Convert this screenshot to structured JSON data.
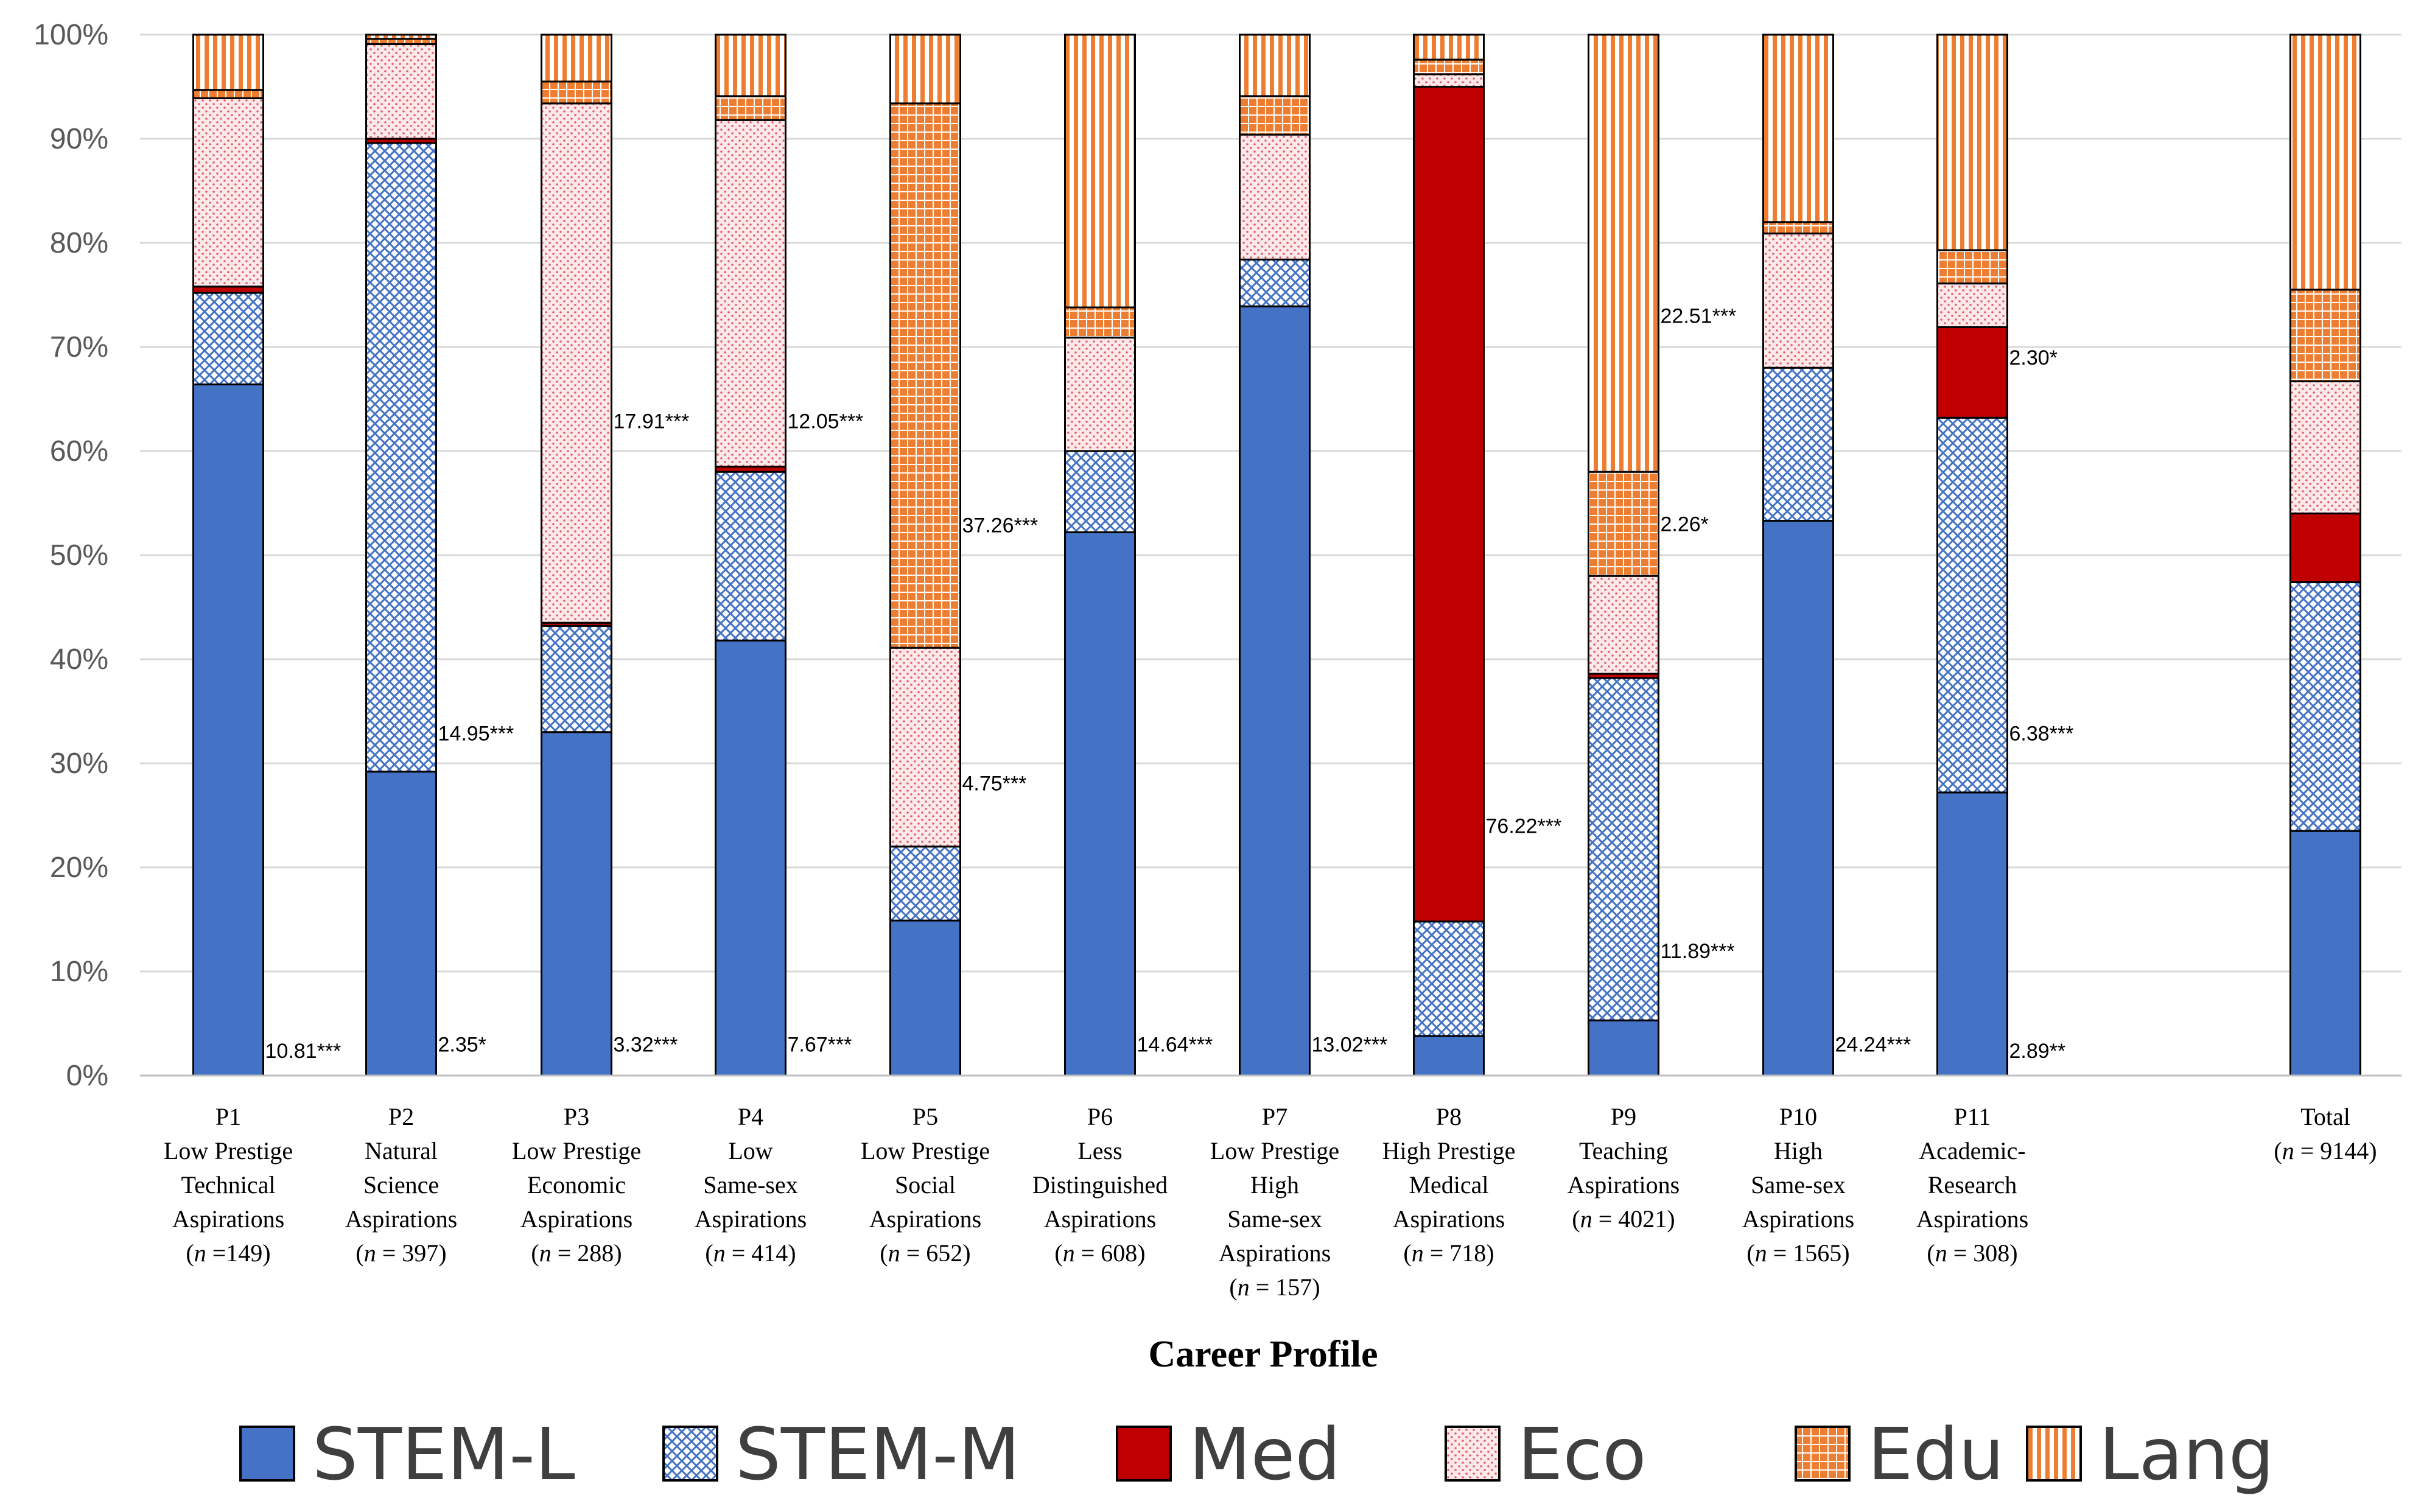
{
  "chart_data": {
    "type": "bar",
    "stacked": true,
    "xlabel": "Career Profile",
    "ylabel": "",
    "ylim": [
      0,
      100
    ],
    "yticks": [
      "0%",
      "10%",
      "20%",
      "30%",
      "40%",
      "50%",
      "60%",
      "70%",
      "80%",
      "90%",
      "100%"
    ],
    "grid": true,
    "legend_placement": "bottom",
    "categories": [
      {
        "lines": [
          "P1",
          "Low Prestige",
          "Technical",
          "Aspirations"
        ],
        "n_prefix": "(",
        "n_italic": "n",
        "n_value": " =149)"
      },
      {
        "lines": [
          "P2",
          "Natural",
          "Science",
          "Aspirations"
        ],
        "n_prefix": "(",
        "n_italic": "n",
        "n_value": " = 397)"
      },
      {
        "lines": [
          "P3",
          "Low Prestige",
          "Economic",
          "Aspirations"
        ],
        "n_prefix": "(",
        "n_italic": "n",
        "n_value": " = 288)"
      },
      {
        "lines": [
          "P4",
          "Low",
          "Same-sex",
          "Aspirations"
        ],
        "n_prefix": "(",
        "n_italic": "n",
        "n_value": " = 414)"
      },
      {
        "lines": [
          "P5",
          "Low Prestige",
          "Social",
          "Aspirations"
        ],
        "n_prefix": "(",
        "n_italic": "n",
        "n_value": " = 652)"
      },
      {
        "lines": [
          "P6",
          "Less",
          "Distinguished",
          "Aspirations"
        ],
        "n_prefix": "(",
        "n_italic": "n",
        "n_value": " = 608)"
      },
      {
        "lines": [
          "P7",
          "Low Prestige",
          "High",
          "Same-sex",
          "Aspirations"
        ],
        "n_prefix": "(",
        "n_italic": "n",
        "n_value": " = 157)"
      },
      {
        "lines": [
          "P8",
          "High Prestige",
          "Medical",
          "Aspirations"
        ],
        "n_prefix": "(",
        "n_italic": "n",
        "n_value": " = 718)"
      },
      {
        "lines": [
          "P9",
          "Teaching",
          "Aspirations"
        ],
        "n_prefix": "(",
        "n_italic": "n",
        "n_value": " = 4021)"
      },
      {
        "lines": [
          "P10",
          "High",
          "Same-sex",
          "Aspirations"
        ],
        "n_prefix": "(",
        "n_italic": "n",
        "n_value": " = 1565)"
      },
      {
        "lines": [
          "P11",
          "Academic-",
          "Research",
          "Aspirations"
        ],
        "n_prefix": "(",
        "n_italic": "n",
        "n_value": " = 308)"
      },
      {
        "lines": [
          "Total"
        ],
        "n_prefix": "(",
        "n_italic": "n",
        "n_value": " = 9144)"
      }
    ],
    "series": [
      {
        "name": "STEM-L",
        "color": "#4472c4",
        "pattern": "solid",
        "values": [
          66.4,
          29.2,
          33.0,
          41.8,
          14.9,
          52.2,
          73.9,
          3.8,
          5.3,
          53.3,
          27.2,
          23.5
        ]
      },
      {
        "name": "STEM-M",
        "color": "#4472c4",
        "pattern": "crosshatch",
        "values": [
          8.8,
          60.4,
          10.2,
          16.2,
          7.1,
          7.8,
          4.5,
          11.0,
          32.9,
          14.7,
          36.0,
          23.9
        ]
      },
      {
        "name": "Med",
        "color": "#c00000",
        "pattern": "solid",
        "values": [
          0.6,
          0.4,
          0.3,
          0.5,
          0.0,
          0.0,
          0.0,
          80.2,
          0.4,
          0.0,
          8.7,
          6.6
        ]
      },
      {
        "name": "Eco",
        "color": "#f08080",
        "pattern": "dots",
        "values": [
          18.1,
          9.1,
          49.9,
          33.3,
          19.1,
          10.9,
          12.0,
          1.2,
          9.4,
          12.9,
          4.2,
          12.7
        ]
      },
      {
        "name": "Edu",
        "color": "#ed7d31",
        "pattern": "grid",
        "values": [
          0.8,
          0.5,
          2.1,
          2.3,
          52.3,
          2.9,
          3.7,
          1.4,
          10.0,
          1.1,
          3.2,
          8.8
        ]
      },
      {
        "name": "Lang",
        "color": "#ed7d31",
        "pattern": "vlines",
        "values": [
          5.3,
          0.4,
          4.5,
          5.9,
          6.6,
          26.2,
          5.9,
          2.4,
          42.0,
          18.0,
          20.7,
          24.5
        ]
      }
    ],
    "annotations": [
      {
        "text": "10.81***",
        "category": 0,
        "y": 1.7
      },
      {
        "text": "2.35*",
        "category": 1,
        "y": 2.3
      },
      {
        "text": "14.95***",
        "category": 1,
        "y": 32.2
      },
      {
        "text": "3.32***",
        "category": 2,
        "y": 2.3
      },
      {
        "text": "17.91***",
        "category": 2,
        "y": 62.2
      },
      {
        "text": "7.67***",
        "category": 3,
        "y": 2.3
      },
      {
        "text": "12.05***",
        "category": 3,
        "y": 62.2
      },
      {
        "text": "4.75***",
        "category": 4,
        "y": 27.4
      },
      {
        "text": "37.26***",
        "category": 4,
        "y": 52.2
      },
      {
        "text": "14.64***",
        "category": 5,
        "y": 2.3
      },
      {
        "text": "13.02***",
        "category": 6,
        "y": 2.3
      },
      {
        "text": "76.22***",
        "category": 7,
        "y": 23.3
      },
      {
        "text": "11.89***",
        "category": 8,
        "y": 11.3
      },
      {
        "text": "2.26*",
        "category": 8,
        "y": 52.3
      },
      {
        "text": "22.51***",
        "category": 8,
        "y": 72.3
      },
      {
        "text": "24.24***",
        "category": 9,
        "y": 2.3
      },
      {
        "text": "2.89**",
        "category": 10,
        "y": 1.7
      },
      {
        "text": "6.38***",
        "category": 10,
        "y": 32.2
      },
      {
        "text": "2.30*",
        "category": 10,
        "y": 68.3
      }
    ]
  }
}
